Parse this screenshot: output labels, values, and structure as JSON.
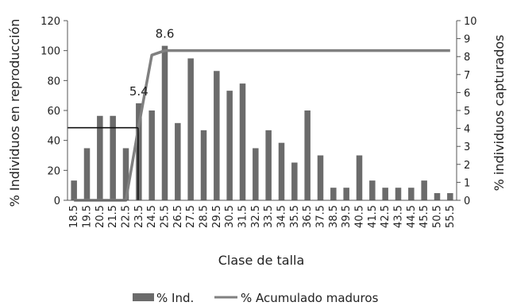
{
  "chart_data": {
    "type": "bar",
    "xlabel": "Clase de talla",
    "ylabel_left": "% Individuos en reproducción",
    "ylabel_right": "% individuos capturados",
    "ylim_left": [
      0,
      120
    ],
    "ylim_right": [
      0,
      10
    ],
    "yticks_left": [
      "0",
      "20",
      "40",
      "60",
      "80",
      "100",
      "120"
    ],
    "yticks_right": [
      "0",
      "1",
      "2",
      "3",
      "4",
      "5",
      "6",
      "7",
      "8",
      "9",
      "10"
    ],
    "categories": [
      "18.5",
      "19.5",
      "20.5",
      "21.5",
      "22.5",
      "23.5",
      "24.5",
      "25.5",
      "26.5",
      "27.5",
      "28.5",
      "29.5",
      "30.5",
      "31.5",
      "32.5",
      "33.5",
      "34.5",
      "35.5",
      "36.5",
      "37.5",
      "38.5",
      "39.5",
      "40.5",
      "41.5",
      "42.5",
      "43.5",
      "44.5",
      "45.5",
      "50.5",
      "55.5"
    ],
    "series": [
      {
        "name": "% Ind.",
        "type": "bar",
        "axis": "right",
        "color": "#6b6b6b",
        "values": [
          1.1,
          2.9,
          4.7,
          4.7,
          2.9,
          5.4,
          5.0,
          8.6,
          4.3,
          7.9,
          3.9,
          7.2,
          6.1,
          6.5,
          2.9,
          3.9,
          3.2,
          2.1,
          5.0,
          2.5,
          0.7,
          0.7,
          2.5,
          1.1,
          0.7,
          0.7,
          0.7,
          1.1,
          0.4,
          0.4
        ]
      },
      {
        "name": "% Acumulado maduros",
        "type": "line",
        "axis": "left",
        "color": "#808080",
        "values": [
          0,
          0,
          0,
          0,
          0,
          50,
          97,
          100,
          100,
          100,
          100,
          100,
          100,
          100,
          100,
          100,
          100,
          100,
          100,
          100,
          100,
          100,
          100,
          100,
          100,
          100,
          100,
          100,
          100,
          100
        ]
      }
    ],
    "reference_lines": {
      "horizontal_left_value": 48.5,
      "vertical_category": "23.5"
    },
    "annotations": [
      {
        "text": "5.4",
        "category": "23.5",
        "value": 5.4
      },
      {
        "text": "8.6",
        "category": "25.5",
        "value": 8.6
      }
    ],
    "legend_position": "bottom",
    "grid": false
  }
}
